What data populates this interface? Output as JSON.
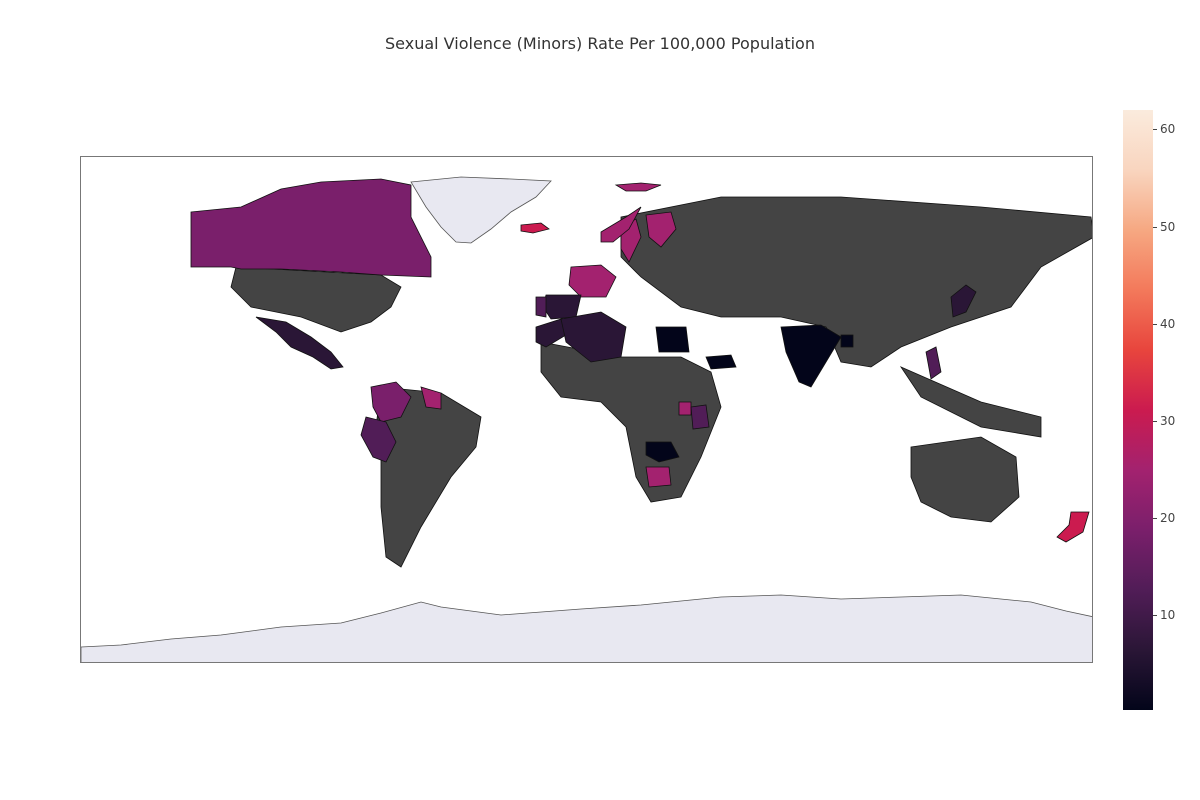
{
  "title": "Sexual Violence (Minors) Rate Per 100,000 Population",
  "colorbar": {
    "ticks": [
      {
        "label": "10",
        "value": 10
      },
      {
        "label": "20",
        "value": 20
      },
      {
        "label": "30",
        "value": 30
      },
      {
        "label": "40",
        "value": 40
      },
      {
        "label": "50",
        "value": 50
      },
      {
        "label": "60",
        "value": 60
      }
    ],
    "min": 0.2,
    "max": 62,
    "colors": [
      "#0d0887",
      "#000000"
    ],
    "scale": [
      "#03051a",
      "#2a1636",
      "#511d57",
      "#7a1f6b",
      "#a3226f",
      "#cb1b4f",
      "#e8453d",
      "#f3795b",
      "#f6a882",
      "#f9d5bf",
      "#faebdd"
    ]
  },
  "chart_data": {
    "type": "choropleth",
    "title": "Sexual Violence (Minors) Rate Per 100,000 Population",
    "no_data_color": "#444444",
    "no_outline_color": "#e8e8f1",
    "range": [
      0.2,
      62
    ],
    "regions": [
      {
        "name": "Canada",
        "value": 18
      },
      {
        "name": "Mexico",
        "value": 6
      },
      {
        "name": "Colombia",
        "value": 16
      },
      {
        "name": "Peru",
        "value": 12
      },
      {
        "name": "Guyana",
        "value": 22
      },
      {
        "name": "France",
        "value": 22
      },
      {
        "name": "Spain",
        "value": 8
      },
      {
        "name": "Portugal",
        "value": 10
      },
      {
        "name": "Sweden",
        "value": 26
      },
      {
        "name": "Finland",
        "value": 24
      },
      {
        "name": "Norway",
        "value": 26
      },
      {
        "name": "Iceland",
        "value": 30
      },
      {
        "name": "Svalbard",
        "value": 26
      },
      {
        "name": "Morocco",
        "value": 8
      },
      {
        "name": "Algeria",
        "value": 8
      },
      {
        "name": "Egypt",
        "value": 2
      },
      {
        "name": "India",
        "value": 3
      },
      {
        "name": "Japan",
        "value": 6
      },
      {
        "name": "Philippines",
        "value": 12
      },
      {
        "name": "Zambia",
        "value": 0.5
      },
      {
        "name": "Botswana",
        "value": 24
      },
      {
        "name": "Uganda",
        "value": 22
      },
      {
        "name": "Kenya",
        "value": 10
      },
      {
        "name": "New Zealand",
        "value": 34
      },
      {
        "name": "Yemen",
        "value": 2
      },
      {
        "name": "Bangladesh",
        "value": 3
      }
    ]
  }
}
